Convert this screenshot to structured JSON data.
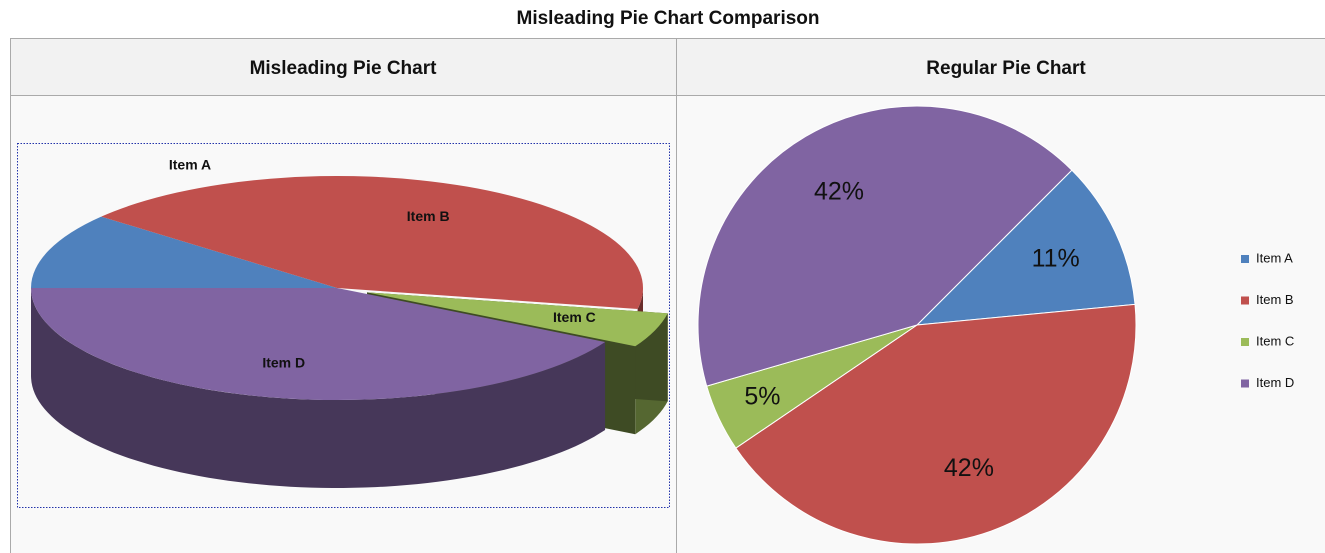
{
  "title": "Misleading Pie Chart Comparison",
  "table": {
    "headers": [
      "Misleading Pie Chart",
      "Regular Pie Chart"
    ]
  },
  "chart_data": [
    {
      "type": "pie3d",
      "categories": [
        "Item A",
        "Item B",
        "Item C",
        "Item D"
      ],
      "values": [
        11,
        42,
        5,
        42
      ],
      "colors": [
        "#4f81bd",
        "#c0504d",
        "#9bbb59",
        "#8064a2"
      ],
      "exploded": "Item C"
    },
    {
      "type": "pie",
      "categories": [
        "Item A",
        "Item B",
        "Item C",
        "Item D"
      ],
      "values": [
        11,
        42,
        5,
        42
      ],
      "value_labels": [
        "11%",
        "42%",
        "5%",
        "42%"
      ],
      "colors": [
        "#4f81bd",
        "#c0504d",
        "#9bbb59",
        "#8064a2"
      ],
      "legend": "right"
    }
  ]
}
